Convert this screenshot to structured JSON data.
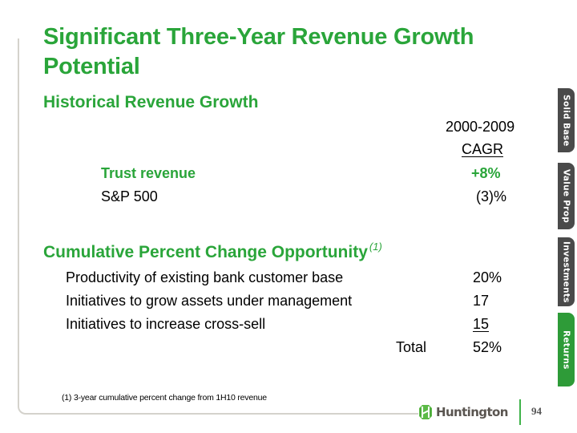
{
  "slide": {
    "title": "Significant Three-Year Revenue Growth Potential",
    "historical": {
      "heading": "Historical Revenue Growth",
      "column_header_line1": "2000-2009",
      "column_header_line2": "CAGR",
      "rows": [
        {
          "label": "Trust revenue",
          "value": "+8%"
        },
        {
          "label": "S&P 500",
          "value": "(3)%"
        }
      ]
    },
    "opportunity": {
      "heading": "Cumulative Percent Change Opportunity",
      "heading_note": "(1)",
      "rows": [
        {
          "label": "Productivity of existing bank customer base",
          "value": "20%"
        },
        {
          "label": "Initiatives to grow assets under management",
          "value": "17"
        },
        {
          "label": "Initiatives to increase cross-sell",
          "value": "15"
        }
      ],
      "total_label": "Total",
      "total_value": "52%"
    },
    "footnote": "(1)  3-year cumulative percent change from 1H10 revenue"
  },
  "nav_tabs": [
    {
      "label": "Solid Base",
      "active": false
    },
    {
      "label": "Value Prop",
      "active": false
    },
    {
      "label": "Investments",
      "active": false
    },
    {
      "label": "Returns",
      "active": true
    }
  ],
  "footer": {
    "brand": "Huntington",
    "page_number": "94"
  },
  "colors": {
    "accent_green": "#2aa53a",
    "tab_dark": "#4a4a4a",
    "tab_active": "#2e9b38"
  }
}
